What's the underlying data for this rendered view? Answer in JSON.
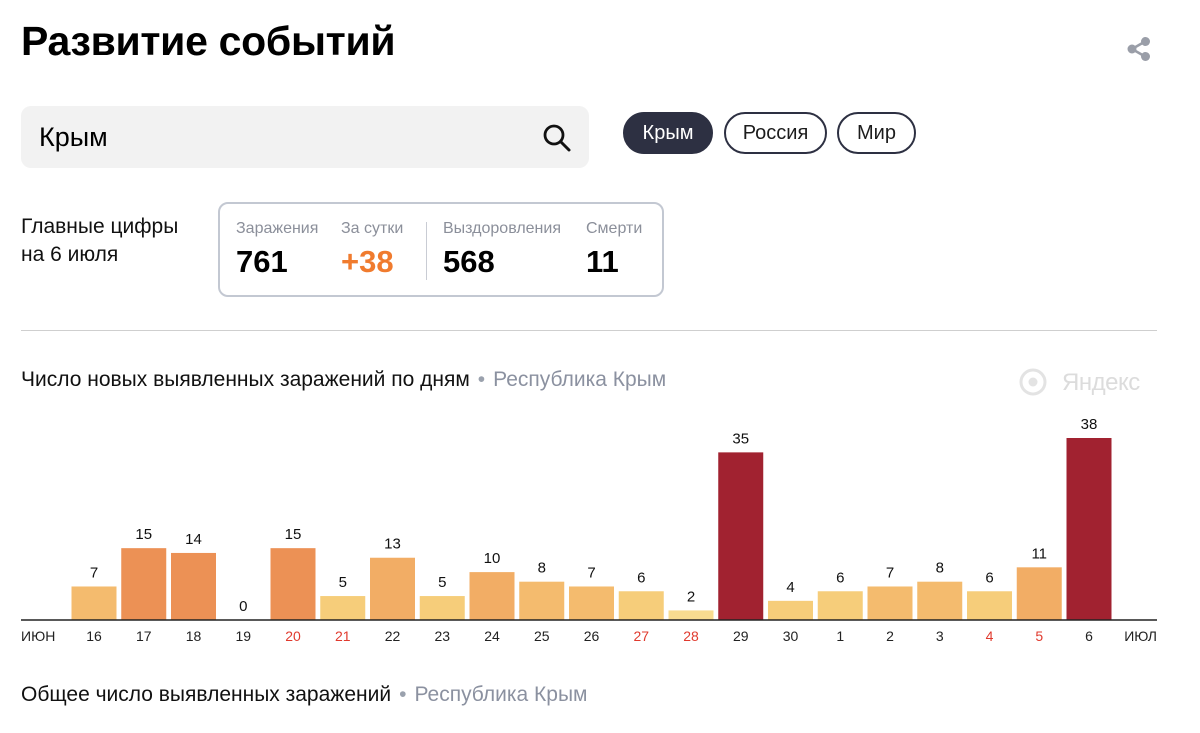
{
  "header": {
    "title": "Развитие событий"
  },
  "search": {
    "value": "Крым",
    "placeholder": ""
  },
  "chips": [
    {
      "label": "Крым",
      "active": true
    },
    {
      "label": "Россия",
      "active": false
    },
    {
      "label": "Мир",
      "active": false
    }
  ],
  "key_figures": {
    "label_line1": "Главные цифры",
    "label_line2": "на 6 июля",
    "infections_label": "Заражения",
    "infections_value": "761",
    "daily_label": "За сутки",
    "daily_value": "+38",
    "recovered_label": "Выздоровления",
    "recovered_value": "568",
    "deaths_label": "Смерти",
    "deaths_value": "11"
  },
  "yandex_brand": "Яндекс",
  "section_daily": {
    "title": "Число новых выявленных заражений по дням",
    "subtitle": "Республика Крым"
  },
  "section_total": {
    "title": "Общее число выявленных заражений",
    "subtitle": "Республика Крым"
  },
  "colors": {
    "accent_dark": "#2d3042",
    "orange_value": "#f07b2e",
    "weekend_label": "#e03a2e"
  },
  "chart_data": {
    "type": "bar",
    "title": "Число новых выявленных заражений по дням",
    "subtitle": "Республика Крым",
    "month_start_label": "ИЮН",
    "month_end_label": "ИЮЛ",
    "categories": [
      "16",
      "17",
      "18",
      "19",
      "20",
      "21",
      "22",
      "23",
      "24",
      "25",
      "26",
      "27",
      "28",
      "29",
      "30",
      "1",
      "2",
      "3",
      "4",
      "5",
      "6"
    ],
    "values": [
      7,
      15,
      14,
      0,
      15,
      5,
      13,
      5,
      10,
      8,
      7,
      6,
      2,
      35,
      4,
      6,
      7,
      8,
      6,
      11,
      38
    ],
    "weekend_days": [
      "20",
      "21",
      "27",
      "28",
      "4",
      "5"
    ],
    "ylim": [
      0,
      38
    ],
    "grid": false,
    "legend": "none"
  }
}
